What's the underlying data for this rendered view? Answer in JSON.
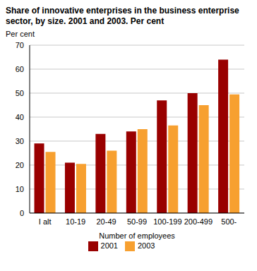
{
  "chart_data": {
    "type": "bar",
    "title": "Share of innovative enterprises in the business enterprise sector, by size. 2001 and 2003. Per cent",
    "y_label": "Per cent",
    "x_label": "Number of employees",
    "categories": [
      "I alt",
      "10-19",
      "20-49",
      "50-99",
      "100-199",
      "200-499",
      "500-"
    ],
    "series": [
      {
        "name": "2001",
        "color": "#990000",
        "values": [
          29,
          21,
          33,
          34,
          47,
          50,
          64
        ]
      },
      {
        "name": "2003",
        "color": "#f7a030",
        "values": [
          25.5,
          20.5,
          26,
          35,
          36.5,
          45,
          49.5
        ]
      }
    ],
    "ylim": [
      0,
      70
    ],
    "yticks": [
      0,
      10,
      20,
      30,
      40,
      50,
      60,
      70
    ],
    "grid": true,
    "legend": "bottom"
  }
}
